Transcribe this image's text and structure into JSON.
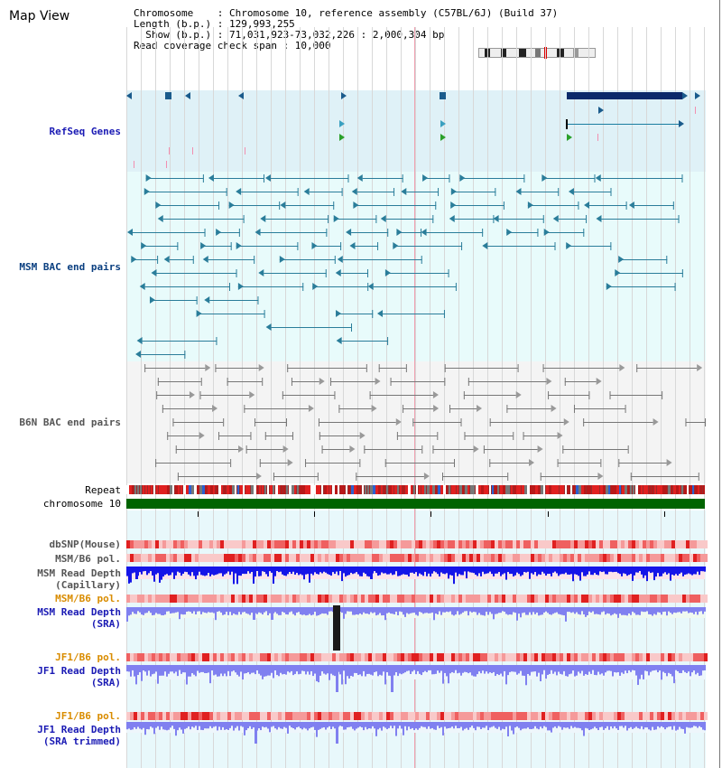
{
  "page_title": "Map View",
  "header": {
    "chromosome": "Chromosome    : Chromosome 10, reference assembly (C57BL/6J) (Build 37)",
    "length": "Length (b.p.) : 129,993,255",
    "show": "  Show (b.p.) : 71,031,923-73,032,226 : 2,000,304 bp",
    "read_span": "Read coverage check span : 10,000"
  },
  "tracks": {
    "refseq": "RefSeq Genes",
    "msm_bac": "MSM BAC end pairs",
    "b6n_bac": "B6N BAC end pairs",
    "repeat": "Repeat",
    "chrom": "chromosome 10",
    "dbsnp": "dbSNP(Mouse)",
    "msm_b6_pol": "MSM/B6 pol.",
    "msm_depth_cap_1": "MSM Read Depth",
    "msm_depth_cap_2": "(Capillary)",
    "msm_b6_pol2": "MSM/B6 pol.",
    "msm_depth_sra_1": "MSM Read Depth",
    "msm_depth_sra_2": "(SRA)",
    "jf1_b6_pol": "JF1/B6 pol.",
    "jf1_depth_sra_1": "JF1 Read Depth",
    "jf1_depth_sra_2": "(SRA)",
    "jf1_b6_pol2": "JF1/B6 pol.",
    "jf1_depth_trim_1": "JF1 Read Depth",
    "jf1_depth_trim_2": "(SRA trimmed)"
  },
  "axis_ticks": [
    "71200000",
    "71600000",
    "72000000",
    "72400000",
    "72800000"
  ],
  "colors": {
    "refseq_bg": "#dff1f7",
    "msm_bg": "#e8fbfb",
    "b6n_bg": "#f4f4f4",
    "gene": "#1a5b8c",
    "msm_feature": "#2a7d9a",
    "b6n_feature": "#777777",
    "chrom_bar": "#006400",
    "depth_blue": "#1515e8",
    "depth_light": "#8080f0"
  }
}
